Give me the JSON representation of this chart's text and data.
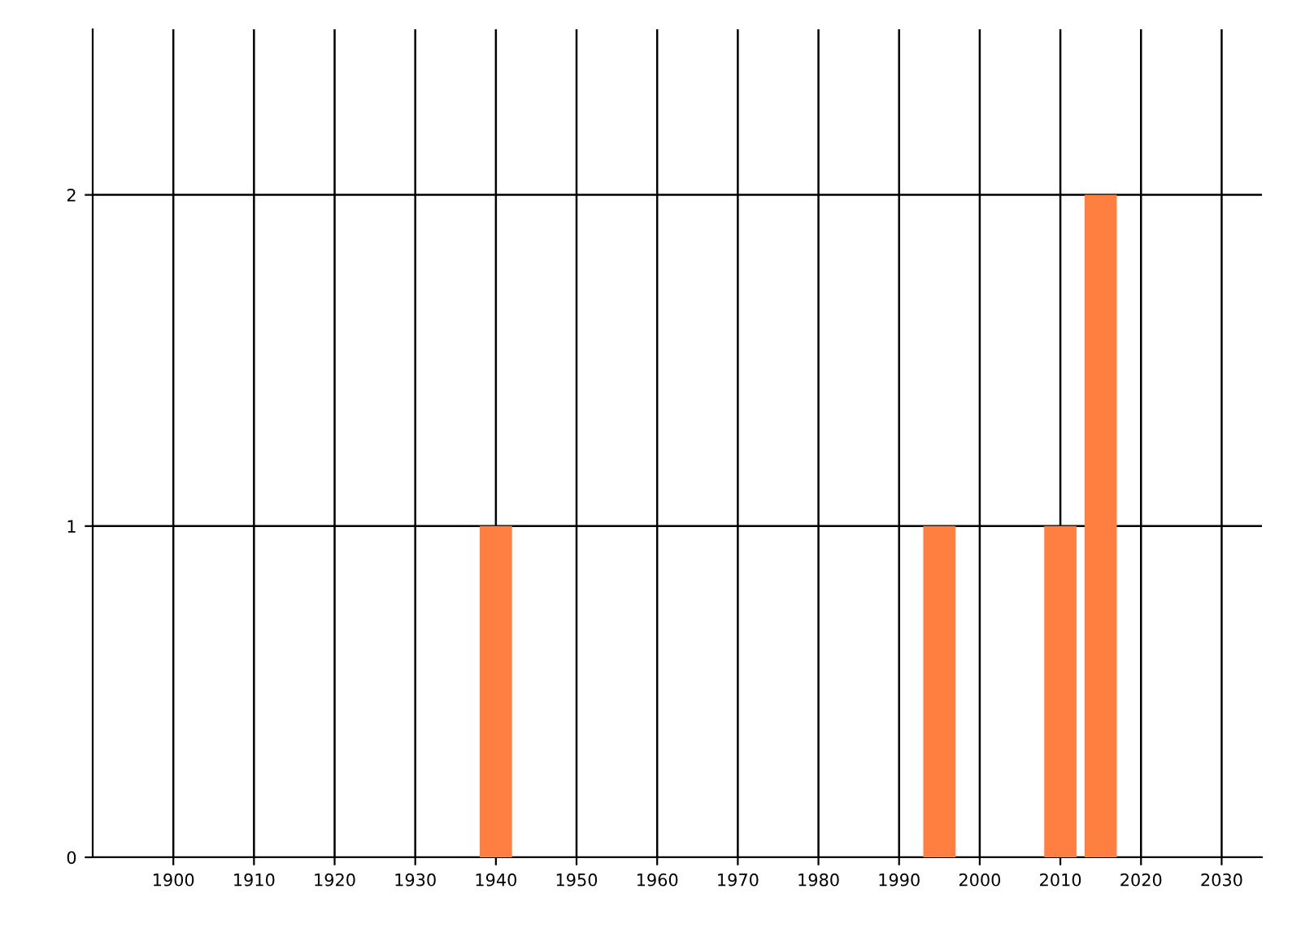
{
  "chart_data": {
    "type": "bar",
    "x": [
      1940,
      1995,
      2010,
      2015
    ],
    "values": [
      1,
      1,
      1,
      2
    ],
    "color": "#ff7f40",
    "xlim": [
      1890,
      2035
    ],
    "xticks": [
      1900,
      1910,
      1920,
      1930,
      1940,
      1950,
      1960,
      1970,
      1980,
      1990,
      2000,
      2010,
      2020,
      2030
    ],
    "ylim": [
      0,
      2.5
    ],
    "yticks": [
      0,
      1,
      2
    ],
    "grid": true,
    "legend": false
  }
}
